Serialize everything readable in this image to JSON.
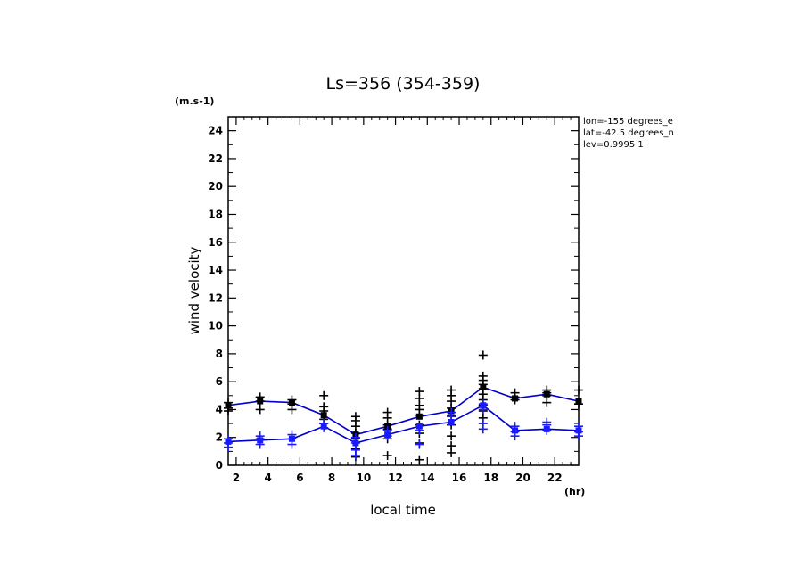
{
  "chart_data": {
    "type": "line",
    "title": "Ls=356 (354-359)",
    "xlabel": "local time",
    "ylabel": "wind velocity",
    "x_unit": "(hr)",
    "y_unit": "(m.s-1)",
    "xlim": [
      1.5,
      23.5
    ],
    "ylim": [
      0,
      25
    ],
    "xticks": [
      2,
      4,
      6,
      8,
      10,
      12,
      14,
      16,
      18,
      20,
      22
    ],
    "yticks": [
      0,
      2,
      4,
      6,
      8,
      10,
      12,
      14,
      16,
      18,
      20,
      22,
      24
    ],
    "annotations": [
      "lon=-155 degrees_e",
      "lat=-42.5 degrees_n",
      "lev=0.9995 1"
    ],
    "series": [
      {
        "color": "#0000cc",
        "line": {
          "x": [
            1.5,
            3.5,
            5.5,
            7.5,
            9.5,
            11.5,
            13.5,
            15.5,
            17.5,
            19.5,
            21.5,
            23.5
          ],
          "y": [
            4.3,
            4.6,
            4.5,
            3.6,
            2.2,
            2.8,
            3.5,
            3.9,
            5.6,
            4.8,
            5.1,
            4.6
          ]
        },
        "points": [
          {
            "x": 1.5,
            "y": [
              4.5,
              4.1,
              3.9
            ]
          },
          {
            "x": 3.5,
            "y": [
              4.9,
              4.6,
              4.0
            ]
          },
          {
            "x": 5.5,
            "y": [
              4.7,
              4.4,
              4.0
            ]
          },
          {
            "x": 7.5,
            "y": [
              5.0,
              4.2,
              3.9,
              3.3,
              3.0
            ]
          },
          {
            "x": 9.5,
            "y": [
              3.5,
              3.2,
              2.8,
              2.3,
              1.9,
              1.2,
              0.6
            ]
          },
          {
            "x": 11.5,
            "y": [
              3.8,
              3.4,
              2.9,
              2.6,
              1.9,
              0.7
            ]
          },
          {
            "x": 13.5,
            "y": [
              5.3,
              4.8,
              4.3,
              4.0,
              3.6,
              2.9,
              2.3,
              1.6,
              0.4
            ]
          },
          {
            "x": 15.5,
            "y": [
              5.4,
              5.0,
              4.6,
              4.1,
              3.6,
              2.9,
              2.1,
              1.4,
              0.9
            ]
          },
          {
            "x": 17.5,
            "y": [
              7.9,
              6.4,
              6.1,
              5.8,
              5.5,
              5.1,
              4.7,
              4.3,
              3.9,
              3.4
            ]
          },
          {
            "x": 19.5,
            "y": [
              5.2,
              4.9,
              4.7
            ]
          },
          {
            "x": 21.5,
            "y": [
              5.4,
              5.2,
              5.0,
              4.5
            ]
          },
          {
            "x": 23.5,
            "y": [
              5.4,
              4.4
            ]
          }
        ]
      },
      {
        "color": "#0000cc",
        "line": {
          "x": [
            1.5,
            3.5,
            5.5,
            7.5,
            9.5,
            11.5,
            13.5,
            15.5,
            17.5,
            19.5,
            21.5,
            23.5
          ],
          "y": [
            1.7,
            1.8,
            1.9,
            2.8,
            1.6,
            2.2,
            2.8,
            3.1,
            4.3,
            2.5,
            2.6,
            2.5
          ]
        },
        "points": [
          {
            "x": 1.5,
            "y": [
              1.9,
              1.6,
              1.3
            ]
          },
          {
            "x": 3.5,
            "y": [
              2.1,
              1.9,
              1.5
            ]
          },
          {
            "x": 5.5,
            "y": [
              2.2,
              1.9,
              1.5
            ]
          },
          {
            "x": 7.5,
            "y": [
              3.0,
              2.7
            ]
          },
          {
            "x": 9.5,
            "y": [
              2.0,
              1.6,
              1.1,
              0.7
            ]
          },
          {
            "x": 11.5,
            "y": [
              2.5,
              2.1
            ]
          },
          {
            "x": 13.5,
            "y": [
              2.5,
              1.5
            ]
          },
          {
            "x": 15.5,
            "y": [
              3.8,
              3.5
            ]
          },
          {
            "x": 17.5,
            "y": [
              4.4,
              4.0,
              3.0,
              2.6
            ]
          },
          {
            "x": 19.5,
            "y": [
              2.8,
              2.4,
              2.1
            ]
          },
          {
            "x": 21.5,
            "y": [
              3.1,
              2.9,
              2.5
            ]
          },
          {
            "x": 23.5,
            "y": [
              2.8,
              2.4,
              2.1
            ]
          }
        ]
      }
    ]
  }
}
